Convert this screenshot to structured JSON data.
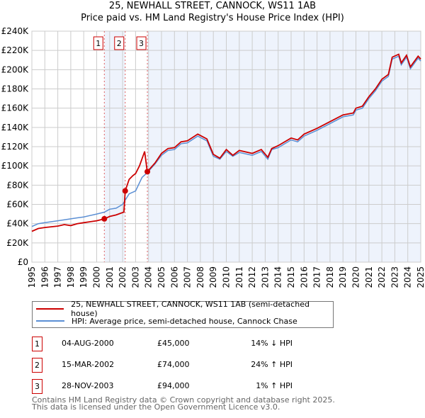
{
  "chart_data": {
    "type": "line",
    "title": "25, NEWHALL STREET, CANNOCK, WS11 1AB",
    "subtitle": "Price paid vs. HM Land Registry's House Price Index (HPI)",
    "xlim": [
      1995,
      2025
    ],
    "ylim": [
      0,
      240000
    ],
    "y_ticks": [
      0,
      20000,
      40000,
      60000,
      80000,
      100000,
      120000,
      140000,
      160000,
      180000,
      200000,
      220000,
      240000
    ],
    "y_tick_labels": [
      "£0",
      "£20K",
      "£40K",
      "£60K",
      "£80K",
      "£100K",
      "£120K",
      "£140K",
      "£160K",
      "£180K",
      "£200K",
      "£220K",
      "£240K"
    ],
    "x_ticks": [
      1995,
      1996,
      1997,
      1998,
      1999,
      2000,
      2001,
      2002,
      2003,
      2004,
      2005,
      2006,
      2007,
      2008,
      2009,
      2010,
      2011,
      2012,
      2013,
      2014,
      2015,
      2016,
      2017,
      2018,
      2019,
      2020,
      2021,
      2022,
      2023,
      2024,
      2025
    ],
    "grid": true,
    "series": [
      {
        "name": "25, NEWHALL STREET, CANNOCK, WS11 1AB (semi-detached house)",
        "color": "#cc0000",
        "x": [
          1995,
          1995.5,
          1996,
          1997,
          1997.5,
          1998,
          1998.5,
          1999,
          2000,
          2000.6,
          2001,
          2001.5,
          2002.1,
          2002.2,
          2002.5,
          2002.8,
          2003,
          2003.3,
          2003.7,
          2003.9,
          2004.5,
          2005,
          2005.5,
          2006,
          2006.5,
          2007,
          2007.8,
          2008.5,
          2009,
          2009.5,
          2010,
          2010.5,
          2011,
          2012,
          2012.7,
          2013.2,
          2013.5,
          2014,
          2015,
          2015.5,
          2016,
          2017,
          2018,
          2019,
          2019.8,
          2020,
          2020.5,
          2021,
          2021.5,
          2022,
          2022.5,
          2022.8,
          2023.3,
          2023.5,
          2023.9,
          2024.2,
          2024.8,
          2025
        ],
        "y": [
          32000,
          35000,
          36000,
          37500,
          39000,
          38000,
          40000,
          41000,
          43000,
          45000,
          47500,
          49000,
          52000,
          74000,
          86000,
          90000,
          92000,
          100000,
          115000,
          94000,
          103000,
          113000,
          118000,
          119000,
          125000,
          126000,
          133000,
          128000,
          112000,
          108000,
          117000,
          111000,
          116000,
          113000,
          117000,
          109000,
          118000,
          121000,
          129000,
          127000,
          133000,
          139000,
          146000,
          153000,
          155000,
          160000,
          162000,
          172000,
          180000,
          190000,
          195000,
          213000,
          216000,
          207000,
          215000,
          203000,
          214000,
          211000
        ]
      },
      {
        "name": "HPI: Average price, semi-detached house, Cannock Chase",
        "color": "#5b8fd4",
        "x": [
          1995,
          1995.5,
          1996,
          1997,
          1997.5,
          1998,
          1998.5,
          1999,
          2000,
          2000.6,
          2001,
          2001.5,
          2002,
          2002.5,
          2003,
          2003.5,
          2003.9,
          2004.5,
          2005,
          2005.5,
          2006,
          2006.5,
          2007,
          2007.8,
          2008.5,
          2009,
          2009.5,
          2010,
          2010.5,
          2011,
          2012,
          2012.7,
          2013.2,
          2013.5,
          2014,
          2015,
          2015.5,
          2016,
          2017,
          2018,
          2019,
          2019.8,
          2020,
          2020.5,
          2021,
          2021.5,
          2022,
          2022.5,
          2022.8,
          2023.3,
          2023.5,
          2023.9,
          2024.2,
          2024.8,
          2025
        ],
        "y": [
          37000,
          40000,
          41000,
          43000,
          44000,
          45000,
          46000,
          47000,
          50000,
          52000,
          55000,
          56000,
          60000,
          71000,
          74000,
          88000,
          93000,
          102000,
          111000,
          116000,
          117000,
          123000,
          124000,
          131000,
          126000,
          110000,
          107000,
          115000,
          110000,
          114000,
          111000,
          115000,
          107000,
          117000,
          119000,
          127000,
          125000,
          131000,
          137000,
          144000,
          151000,
          153000,
          158000,
          160000,
          170000,
          178000,
          188000,
          193000,
          211000,
          214000,
          205000,
          213000,
          201000,
          212000,
          209000
        ]
      }
    ],
    "sales": [
      {
        "label": "1",
        "year": 2000.59,
        "price": 45000,
        "date": "04-AUG-2000",
        "price_text": "£45,000",
        "hpi_text": "14% ↓ HPI"
      },
      {
        "label": "2",
        "year": 2002.2,
        "price": 74000,
        "date": "15-MAR-2002",
        "price_text": "£74,000",
        "hpi_text": "24% ↑ HPI"
      },
      {
        "label": "3",
        "year": 2003.91,
        "price": 94000,
        "date": "28-NOV-2003",
        "price_text": "£94,000",
        "hpi_text": "1% ↑ HPI"
      }
    ]
  },
  "footer": {
    "line1": "Contains HM Land Registry data © Crown copyright and database right 2025.",
    "line2": "This data is licensed under the Open Government Licence v3.0."
  }
}
